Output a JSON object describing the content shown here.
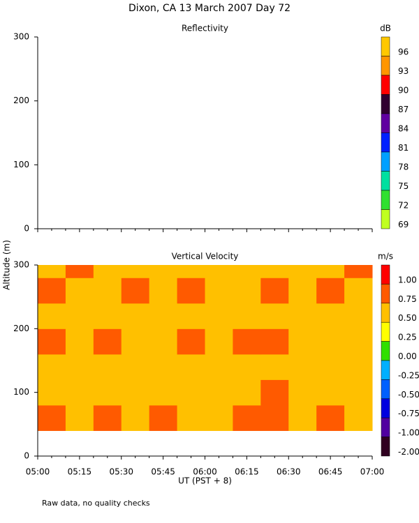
{
  "title": "Dixon, CA 13 March 2007  Day  72",
  "ylabel": "Altitude (m)",
  "footnote": "Raw data, no quality checks",
  "chart_data": [
    {
      "type": "heatmap",
      "title": "Reflectivity",
      "ylim": [
        0,
        300
      ],
      "yticks": [
        0,
        100,
        200,
        300
      ],
      "xticks": [
        "05:00",
        "05:15",
        "05:30",
        "05:45",
        "06:00",
        "06:15",
        "06:30",
        "06:45",
        "07:00"
      ],
      "colorbar": {
        "unit": "dB",
        "levels": [
          96,
          93,
          90,
          87,
          84,
          81,
          78,
          75,
          72,
          69
        ],
        "colors": [
          "#ffc800",
          "#ff9600",
          "#ff0000",
          "#300030",
          "#6000a0",
          "#0020ff",
          "#00a0ff",
          "#00e0a0",
          "#30e030",
          "#c0ff20"
        ]
      }
    },
    {
      "type": "heatmap",
      "title": "Vertical Velocity",
      "xlabel": "UT  (PST + 8)",
      "ylim": [
        0,
        300
      ],
      "yticks": [
        0,
        100,
        200,
        300
      ],
      "xticks": [
        "05:00",
        "05:15",
        "05:30",
        "05:45",
        "06:00",
        "06:15",
        "06:30",
        "06:45",
        "07:00"
      ],
      "colorbar": {
        "unit": "m/s",
        "levels": [
          {
            "value": 1,
            "label": "1.00"
          },
          0.75,
          {
            "value": 0.5,
            "label": "0.50"
          },
          0.25,
          {
            "value": 0,
            "label": "0.00"
          },
          -0.25,
          {
            "value": -0.5,
            "label": "-0.50"
          },
          -0.75,
          {
            "value": -1,
            "label": "-1.00"
          },
          {
            "value": -2,
            "label": "-2.00"
          }
        ],
        "colors": [
          "#ff0000",
          "#ff5a00",
          "#ffc000",
          "#ffff00",
          "#30e000",
          "#00b0ff",
          "#0060ff",
          "#0000e0",
          "#5000a0",
          "#300020"
        ]
      },
      "y_edges": [
        40,
        80,
        120,
        160,
        200,
        240,
        280,
        300
      ],
      "values": [
        [
          0.78,
          0.72,
          0.8,
          0.7,
          0.76,
          0.68,
          0.74,
          0.8,
          0.82,
          0.7,
          0.78,
          0.72
        ],
        [
          0.7,
          0.62,
          0.74,
          0.66,
          0.6,
          0.72,
          0.64,
          0.7,
          0.78,
          0.68,
          0.74,
          0.6
        ],
        [
          0.6,
          0.66,
          0.58,
          0.7,
          0.62,
          0.56,
          0.66,
          0.6,
          0.64,
          0.72,
          0.58,
          0.62
        ],
        [
          0.76,
          0.7,
          0.8,
          0.74,
          0.66,
          0.78,
          0.72,
          0.8,
          0.76,
          0.7,
          0.66,
          0.74
        ],
        [
          0.62,
          0.56,
          0.66,
          0.6,
          0.7,
          0.58,
          0.64,
          0.56,
          0.68,
          0.6,
          0.62,
          0.66
        ],
        [
          0.78,
          0.7,
          0.74,
          0.8,
          0.68,
          0.76,
          0.72,
          0.66,
          0.78,
          0.7,
          0.8,
          0.74
        ],
        [
          0.7,
          0.76,
          0.64,
          0.7,
          0.62,
          0.68,
          0.74,
          0.6,
          0.66,
          0.72,
          0.64,
          0.78
        ]
      ]
    }
  ]
}
